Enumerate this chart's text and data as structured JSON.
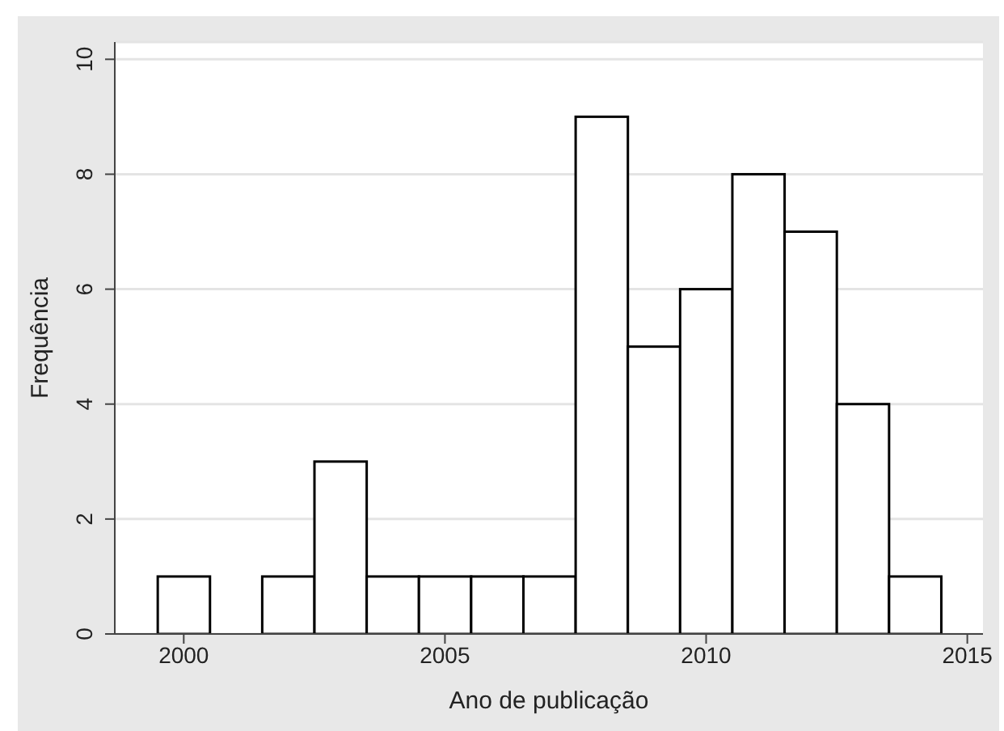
{
  "chart_data": {
    "type": "histogram",
    "xlabel": "Ano de publicação",
    "ylabel": "Frequência",
    "bins": [
      1999.5,
      2000.5,
      2001.5,
      2002.5,
      2003.5,
      2004.5,
      2005.5,
      2006.5,
      2007.5,
      2008.5,
      2009.5,
      2010.5,
      2011.5,
      2012.5,
      2013.5,
      2014.5
    ],
    "values": [
      1,
      0,
      1,
      3,
      1,
      1,
      1,
      1,
      9,
      5,
      6,
      8,
      7,
      4,
      1
    ],
    "color": "#ffffff",
    "xlim": [
      1998.68,
      2015.3
    ],
    "xticks": [
      2000,
      2005,
      2010,
      2015
    ],
    "ylim": [
      0,
      10.3
    ],
    "yticks": [
      0,
      2,
      4,
      6,
      8,
      10
    ],
    "grid": "y",
    "legend": false
  }
}
